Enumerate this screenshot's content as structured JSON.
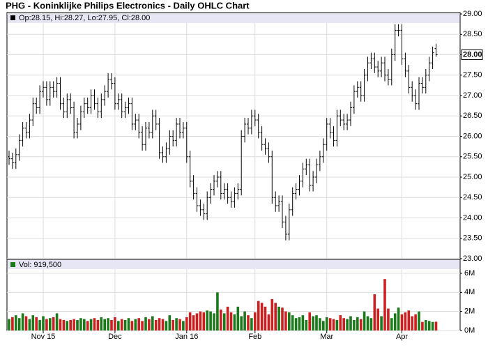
{
  "chart_data": [
    {
      "type": "ohlc",
      "title": "PHG - Koninklijke Philips Electronics - Daily OHLC Chart",
      "legend_text": "Op:28.15, Hi:28.27, Lo:27.95, Cl:28.00",
      "color": "#000000",
      "grid": true,
      "categories": [
        null,
        null,
        null,
        null,
        null,
        null,
        null,
        null,
        null,
        null,
        "Nov 15",
        null,
        null,
        null,
        null,
        null,
        null,
        null,
        null,
        null,
        null,
        null,
        null,
        null,
        null,
        null,
        null,
        null,
        null,
        null,
        null,
        "Dec",
        null,
        null,
        null,
        null,
        null,
        null,
        null,
        null,
        null,
        null,
        null,
        null,
        null,
        null,
        null,
        null,
        null,
        null,
        null,
        null,
        "Jan 16",
        null,
        null,
        null,
        null,
        null,
        null,
        null,
        null,
        null,
        null,
        null,
        null,
        null,
        null,
        null,
        null,
        null,
        null,
        null,
        "Feb",
        null,
        null,
        null,
        null,
        null,
        null,
        null,
        null,
        null,
        null,
        null,
        null,
        null,
        null,
        null,
        null,
        null,
        null,
        null,
        null,
        "Mar",
        null,
        null,
        null,
        null,
        null,
        null,
        null,
        null,
        null,
        null,
        null,
        null,
        null,
        null,
        null,
        null,
        null,
        null,
        null,
        null,
        null,
        "Apr",
        null,
        null,
        null,
        null,
        null,
        null,
        null,
        null,
        null,
        null
      ],
      "open": [
        25.5,
        25.45,
        25.35,
        25.55,
        25.9,
        26.2,
        26.1,
        26.4,
        26.8,
        26.7,
        27.1,
        27.2,
        26.9,
        27.2,
        27.1,
        27.3,
        26.8,
        26.6,
        26.9,
        26.7,
        26.1,
        26.3,
        26.6,
        26.8,
        26.7,
        27.0,
        26.8,
        26.6,
        26.9,
        27.1,
        27.4,
        27.3,
        26.8,
        26.9,
        26.6,
        26.7,
        26.8,
        26.3,
        26.4,
        26.1,
        25.8,
        26.2,
        26.1,
        26.5,
        26.3,
        25.6,
        25.5,
        25.7,
        26.0,
        25.9,
        26.3,
        26.1,
        26.2,
        25.5,
        24.9,
        24.6,
        24.3,
        24.2,
        24.1,
        24.5,
        24.7,
        24.9,
        25.0,
        24.6,
        24.7,
        24.5,
        24.4,
        24.6,
        24.7,
        26.0,
        26.3,
        26.2,
        26.5,
        26.4,
        26.1,
        25.8,
        25.7,
        25.5,
        24.5,
        24.3,
        24.4,
        23.9,
        23.6,
        24.2,
        24.6,
        24.7,
        24.9,
        25.2,
        25.3,
        24.8,
        25.0,
        25.3,
        25.5,
        25.8,
        26.3,
        26.1,
        25.9,
        26.5,
        26.4,
        26.3,
        26.4,
        26.7,
        27.1,
        27.2,
        27.0,
        27.5,
        27.8,
        27.9,
        27.7,
        27.6,
        27.8,
        27.5,
        27.4,
        28.0,
        28.6,
        28.6,
        27.9,
        27.6,
        27.2,
        27.0,
        26.8,
        27.3,
        27.2,
        27.5,
        27.8,
        28.15
      ],
      "high": [
        25.65,
        25.6,
        25.7,
        26.05,
        26.35,
        26.35,
        26.55,
        26.95,
        26.95,
        27.25,
        27.35,
        27.35,
        27.35,
        27.35,
        27.45,
        27.45,
        26.95,
        27.05,
        27.05,
        26.85,
        26.45,
        26.75,
        26.95,
        26.95,
        27.15,
        27.15,
        26.95,
        27.05,
        27.25,
        27.55,
        27.55,
        27.45,
        27.05,
        27.05,
        26.85,
        26.95,
        26.95,
        26.55,
        26.55,
        26.25,
        26.35,
        26.35,
        26.65,
        26.65,
        26.45,
        25.75,
        25.85,
        26.15,
        26.15,
        26.45,
        26.45,
        26.35,
        26.35,
        25.65,
        25.05,
        24.75,
        24.45,
        24.35,
        24.65,
        24.85,
        25.05,
        25.15,
        25.15,
        24.85,
        24.85,
        24.65,
        24.75,
        24.85,
        26.15,
        26.45,
        26.45,
        26.65,
        26.65,
        26.55,
        26.25,
        25.95,
        25.85,
        25.65,
        24.65,
        24.55,
        24.55,
        24.05,
        24.35,
        24.75,
        24.85,
        25.05,
        25.35,
        25.45,
        25.45,
        25.15,
        25.45,
        25.65,
        25.95,
        26.45,
        26.45,
        26.25,
        26.65,
        26.65,
        26.55,
        26.55,
        26.85,
        27.25,
        27.35,
        27.35,
        27.65,
        27.95,
        28.05,
        28.05,
        27.85,
        27.95,
        27.95,
        27.65,
        28.15,
        28.75,
        28.75,
        28.75,
        28.05,
        27.75,
        27.35,
        27.15,
        27.45,
        27.45,
        27.65,
        27.95,
        28.2,
        28.27
      ],
      "low": [
        25.3,
        25.2,
        25.2,
        25.4,
        25.75,
        25.95,
        25.95,
        26.25,
        26.55,
        26.55,
        26.95,
        26.75,
        26.75,
        26.95,
        26.95,
        26.65,
        26.45,
        26.45,
        26.55,
        25.95,
        25.95,
        26.15,
        26.45,
        26.55,
        26.55,
        26.65,
        26.45,
        26.45,
        26.75,
        26.95,
        27.15,
        26.65,
        26.65,
        26.45,
        26.45,
        26.55,
        26.15,
        26.15,
        25.95,
        25.65,
        25.65,
        25.95,
        25.95,
        26.15,
        25.45,
        25.35,
        25.35,
        25.55,
        25.75,
        25.75,
        25.95,
        25.95,
        25.35,
        24.75,
        24.45,
        24.15,
        24.05,
        23.95,
        23.95,
        24.35,
        24.55,
        24.75,
        24.45,
        24.45,
        24.35,
        24.25,
        24.25,
        24.45,
        24.55,
        25.85,
        26.05,
        26.05,
        26.25,
        25.95,
        25.65,
        25.55,
        25.35,
        24.35,
        24.15,
        24.15,
        23.75,
        23.45,
        23.45,
        24.05,
        24.45,
        24.55,
        24.75,
        25.05,
        24.65,
        24.65,
        24.85,
        25.15,
        25.35,
        25.65,
        25.95,
        25.75,
        25.75,
        26.25,
        26.15,
        26.15,
        26.25,
        26.55,
        26.95,
        26.85,
        26.85,
        27.35,
        27.65,
        27.55,
        27.45,
        27.45,
        27.35,
        27.25,
        27.25,
        27.85,
        28.45,
        27.75,
        27.45,
        27.05,
        26.85,
        26.65,
        26.65,
        27.05,
        27.05,
        27.35,
        27.65,
        27.95
      ],
      "close": [
        25.45,
        25.35,
        25.55,
        25.9,
        26.2,
        26.1,
        26.4,
        26.8,
        26.7,
        27.1,
        27.2,
        26.9,
        27.2,
        27.1,
        27.3,
        26.8,
        26.6,
        26.9,
        26.7,
        26.1,
        26.3,
        26.6,
        26.8,
        26.7,
        27.0,
        26.8,
        26.6,
        26.9,
        27.1,
        27.4,
        27.3,
        26.8,
        26.9,
        26.6,
        26.7,
        26.8,
        26.3,
        26.4,
        26.1,
        25.8,
        26.2,
        26.1,
        26.5,
        26.3,
        25.6,
        25.5,
        25.7,
        26.0,
        25.9,
        26.3,
        26.1,
        26.2,
        25.5,
        24.9,
        24.6,
        24.3,
        24.2,
        24.1,
        24.5,
        24.7,
        24.9,
        25.0,
        24.6,
        24.7,
        24.5,
        24.4,
        24.6,
        24.7,
        26.0,
        26.3,
        26.2,
        26.5,
        26.4,
        26.1,
        25.8,
        25.7,
        25.5,
        24.5,
        24.3,
        24.4,
        23.9,
        23.6,
        24.2,
        24.6,
        24.7,
        24.9,
        25.2,
        25.3,
        24.8,
        25.0,
        25.3,
        25.5,
        25.8,
        26.3,
        26.1,
        25.9,
        26.5,
        26.4,
        26.3,
        26.4,
        26.7,
        27.1,
        27.2,
        27.0,
        27.5,
        27.8,
        27.9,
        27.7,
        27.6,
        27.8,
        27.5,
        27.4,
        28.0,
        28.6,
        28.6,
        27.9,
        27.6,
        27.2,
        27.0,
        26.8,
        27.3,
        27.2,
        27.5,
        27.8,
        28.05,
        28.0
      ],
      "ylim": [
        23,
        29
      ],
      "yticks": [
        {
          "value": 23,
          "label": "23.00"
        },
        {
          "value": 23.5,
          "label": "23.50"
        },
        {
          "value": 24,
          "label": "24.00"
        },
        {
          "value": 24.5,
          "label": "24.50"
        },
        {
          "value": 25,
          "label": "25.00"
        },
        {
          "value": 25.5,
          "label": "25.50"
        },
        {
          "value": 26,
          "label": "26.00"
        },
        {
          "value": 26.5,
          "label": "26.50"
        },
        {
          "value": 27,
          "label": "27.00"
        },
        {
          "value": 27.5,
          "label": "27.50"
        },
        {
          "value": 28,
          "label": "28.00"
        },
        {
          "value": 28.5,
          "label": "28.50"
        },
        {
          "value": 29,
          "label": "29.00"
        }
      ]
    },
    {
      "type": "bar",
      "legend_text": "Vol: 919,500",
      "up_color": "#1a7a1a",
      "down_color": "#cc1f1f",
      "grid": true,
      "values": [
        1200000,
        1400000,
        1600000,
        1300000,
        1800000,
        1500000,
        1200000,
        1600000,
        1400000,
        1100000,
        1500000,
        1200000,
        1300000,
        1400000,
        1800000,
        1200000,
        1100000,
        1000000,
        1100000,
        1200000,
        1100000,
        1300000,
        1200000,
        1000000,
        1200000,
        1300000,
        1100000,
        1400000,
        1200000,
        1300000,
        1100000,
        1400000,
        1000000,
        1200000,
        1100000,
        1300000,
        1000000,
        1200000,
        1300000,
        1000000,
        1400000,
        1200000,
        1500000,
        1100000,
        1300000,
        1200000,
        1000000,
        1600000,
        1100000,
        1300000,
        1200000,
        1000000,
        1400000,
        1900000,
        1600000,
        1800000,
        2000000,
        1900000,
        2100000,
        2000000,
        1800000,
        4000000,
        2200000,
        1800000,
        2500000,
        1900000,
        1700000,
        2500000,
        1500000,
        2000000,
        1600000,
        1300000,
        1900000,
        3100000,
        2900000,
        2500000,
        1700000,
        3300000,
        2900000,
        2500000,
        2400000,
        2000000,
        1900000,
        1600000,
        1300000,
        1400000,
        1600000,
        1100000,
        1900000,
        1500000,
        1600000,
        1300000,
        1000000,
        1400000,
        1300000,
        1200000,
        1100000,
        1600000,
        1300000,
        1200000,
        1500000,
        1100000,
        1400000,
        1200000,
        2000000,
        1500000,
        1300000,
        3800000,
        2300000,
        1500000,
        5400000,
        2300000,
        1300000,
        1800000,
        2400000,
        1700000,
        1900000,
        2100000,
        1500000,
        1700000,
        2000000,
        900000,
        1100000,
        1000000,
        900000,
        919500
      ],
      "ylim": [
        0,
        6000000
      ],
      "yticks": [
        {
          "value": 0,
          "label": "0M"
        },
        {
          "value": 2000000,
          "label": "2M"
        },
        {
          "value": 4000000,
          "label": "4M"
        },
        {
          "value": 6000000,
          "label": "6M"
        }
      ]
    }
  ]
}
